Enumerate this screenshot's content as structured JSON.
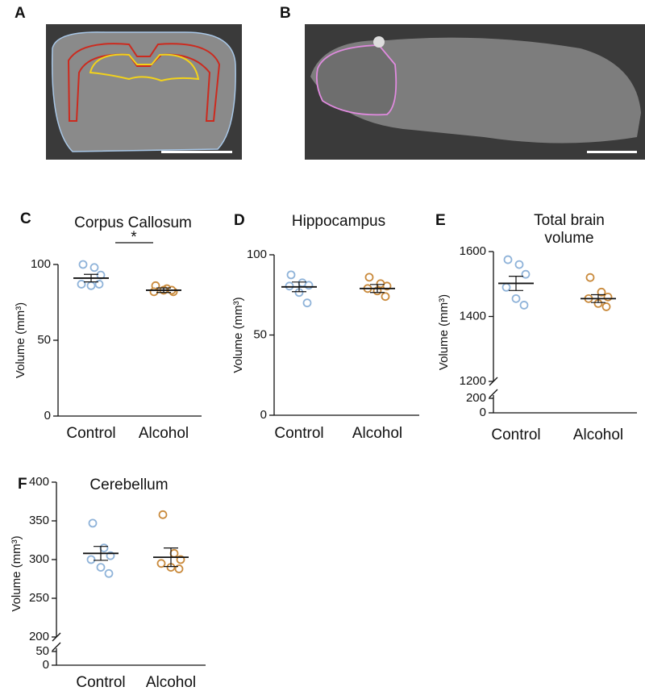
{
  "images": [
    {
      "panel": "A"
    },
    {
      "panel": "B"
    }
  ],
  "chart_data": [
    {
      "type": "dotplot",
      "panel": "C",
      "title": "Corpus Callosum",
      "ylabel": "Volume (mm³)",
      "ylim": [
        0,
        100
      ],
      "yticks": [
        0,
        50,
        100
      ],
      "significance": "*",
      "series": [
        {
          "name": "Control",
          "color": "#8fb3d9",
          "values": [
            100,
            98,
            93,
            87,
            86,
            87
          ],
          "mean": 91,
          "sem": 2.5
        },
        {
          "name": "Alcohol",
          "color": "#c98a3c",
          "values": [
            86,
            84,
            82,
            82,
            83,
            83
          ],
          "mean": 83,
          "sem": 1.5
        }
      ]
    },
    {
      "type": "dotplot",
      "panel": "D",
      "title": "Hippocampus",
      "ylabel": "Volume (mm³)",
      "ylim": [
        0,
        100
      ],
      "yticks": [
        0,
        50,
        100
      ],
      "series": [
        {
          "name": "Control",
          "color": "#8fb3d9",
          "values": [
            87.5,
            82.5,
            81,
            80.5,
            76.5,
            70
          ],
          "mean": 80,
          "sem": 3
        },
        {
          "name": "Alcohol",
          "color": "#c98a3c",
          "values": [
            86,
            82,
            80.5,
            79,
            77.5,
            74
          ],
          "mean": 79,
          "sem": 2.5
        }
      ]
    },
    {
      "type": "dotplot",
      "panel": "E",
      "title": [
        "Total brain",
        "volume"
      ],
      "ylabel": "Volume (mm³)",
      "ylim": [
        1200,
        1600
      ],
      "yticks": [
        1200,
        1400,
        1600
      ],
      "ybreak": {
        "ylim": [
          0,
          200
        ],
        "yticks": [
          0,
          200
        ]
      },
      "series": [
        {
          "name": "Control",
          "color": "#8fb3d9",
          "values": [
            1575,
            1560,
            1530,
            1490,
            1455,
            1435
          ],
          "mean": 1502,
          "sem": 22
        },
        {
          "name": "Alcohol",
          "color": "#c98a3c",
          "values": [
            1520,
            1475,
            1460,
            1455,
            1440,
            1430
          ],
          "mean": 1455,
          "sem": 12
        }
      ]
    },
    {
      "type": "dotplot",
      "panel": "F",
      "title": "Cerebellum",
      "ylabel": "Volume (mm³)",
      "ylim": [
        200,
        400
      ],
      "yticks": [
        200,
        250,
        300,
        350,
        400
      ],
      "ybreak": {
        "ylim": [
          0,
          50
        ],
        "yticks": [
          0,
          50
        ]
      },
      "series": [
        {
          "name": "Control",
          "color": "#8fb3d9",
          "values": [
            347,
            315,
            305,
            300,
            290,
            282
          ],
          "mean": 308,
          "sem": 9
        },
        {
          "name": "Alcohol",
          "color": "#c98a3c",
          "values": [
            358,
            308,
            300,
            295,
            290,
            288
          ],
          "mean": 303,
          "sem": 12
        }
      ]
    }
  ]
}
